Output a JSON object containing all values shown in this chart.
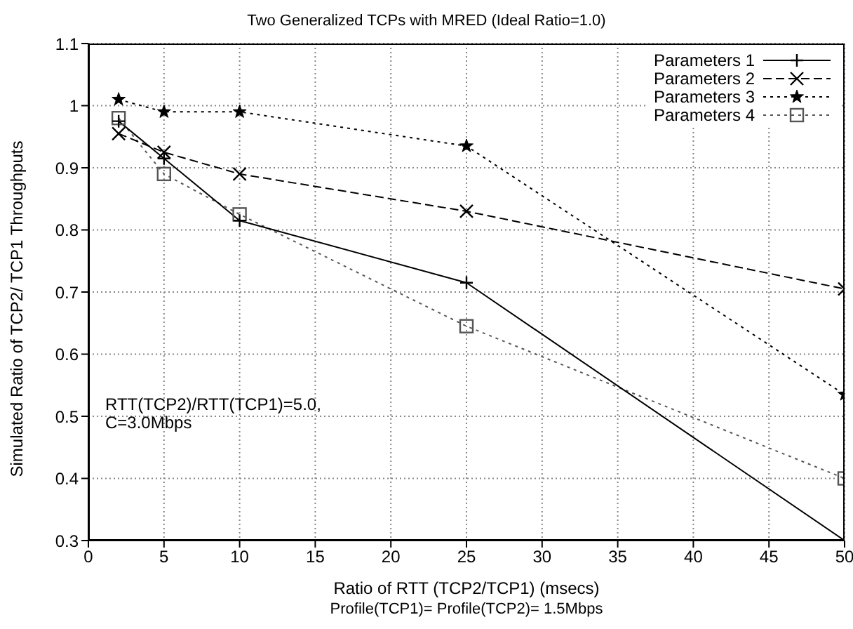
{
  "chart_data": {
    "type": "line",
    "title": "Two Generalized TCPs with MRED (Ideal Ratio=1.0)",
    "xlabel": "Ratio of RTT (TCP2/TCP1) (msecs)",
    "ylabel": "Simulated Ratio of TCP2/ TCP1 Throughputs",
    "annotations": [
      "RTT(TCP2)/RTT(TCP1)=5.0,\nC=3.0Mbps",
      "Profile(TCP1)= Profile(TCP2)= 1.5Mbps"
    ],
    "x": [
      2,
      5,
      10,
      25,
      50
    ],
    "series": [
      {
        "name": "Parameters 1",
        "color": "#000000",
        "marker": "plus",
        "line_style": "solid",
        "values": [
          0.975,
          0.915,
          0.815,
          0.715,
          0.3
        ]
      },
      {
        "name": "Parameters 2",
        "color": "#000000",
        "marker": "cross",
        "line_style": "dashed",
        "values": [
          0.955,
          0.925,
          0.89,
          0.83,
          0.705
        ]
      },
      {
        "name": "Parameters 3",
        "color": "#000000",
        "marker": "star",
        "line_style": "dotted",
        "values": [
          1.01,
          0.99,
          0.99,
          0.935,
          0.535
        ]
      },
      {
        "name": "Parameters 4",
        "color": "#555555",
        "marker": "square",
        "line_style": "dotted",
        "values": [
          0.98,
          0.89,
          0.825,
          0.645,
          0.4
        ]
      }
    ],
    "xlim": [
      0,
      50
    ],
    "xticks": [
      0,
      5,
      10,
      15,
      20,
      25,
      30,
      35,
      40,
      45,
      50
    ],
    "ylim": [
      0.3,
      1.1
    ],
    "yticks": [
      0.3,
      0.4,
      0.5,
      0.6,
      0.7,
      0.8,
      0.9,
      1,
      1.1
    ],
    "grid": true,
    "legend": "top right"
  }
}
